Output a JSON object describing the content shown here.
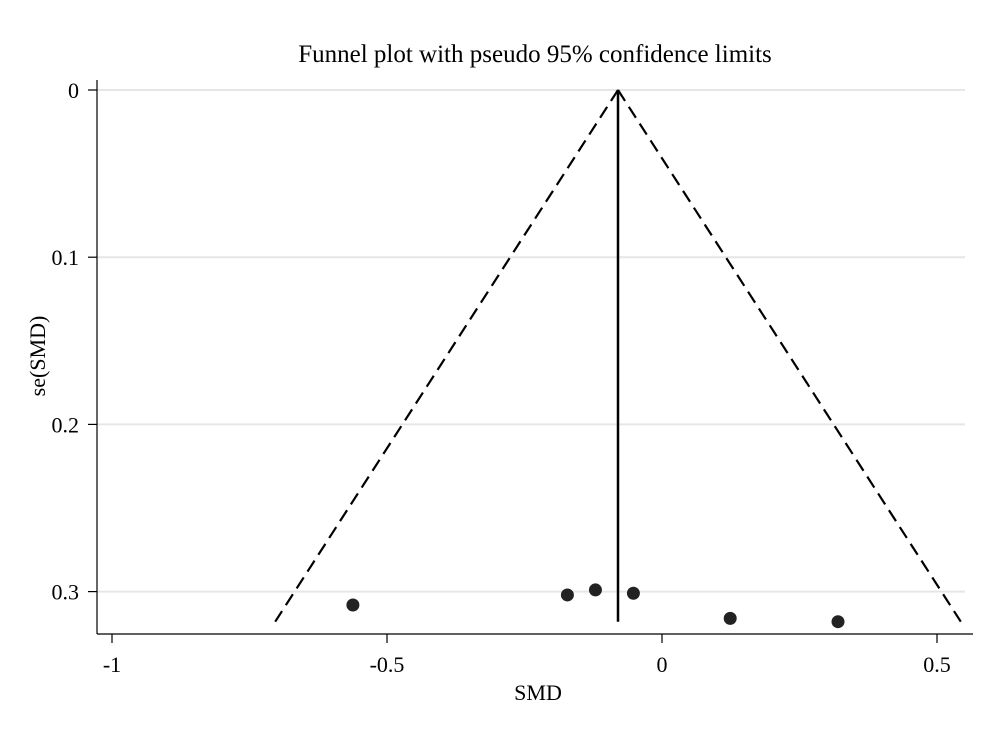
{
  "chart_data": {
    "type": "scatter",
    "title": "Funnel plot with pseudo 95% confidence limits",
    "xlabel": "SMD",
    "ylabel": "se(SMD)",
    "xlim": [
      -1.03,
      0.57
    ],
    "ylim": [
      0,
      0.325
    ],
    "y_inverted": true,
    "x_ticks": [
      -1,
      -0.5,
      0,
      0.5
    ],
    "x_tick_labels": [
      "-1",
      "-0.5",
      "0",
      "0.5"
    ],
    "y_ticks": [
      0,
      0.1,
      0.2,
      0.3
    ],
    "y_tick_labels": [
      "0",
      "0.1",
      "0.2",
      "0.3"
    ],
    "grid": "horizontal",
    "pooled_estimate": -0.08,
    "funnel_se_max": 0.318,
    "points": [
      {
        "x": -0.562,
        "y": 0.308
      },
      {
        "x": -0.172,
        "y": 0.302
      },
      {
        "x": -0.121,
        "y": 0.299
      },
      {
        "x": -0.052,
        "y": 0.301
      },
      {
        "x": 0.124,
        "y": 0.316
      },
      {
        "x": 0.32,
        "y": 0.318
      }
    ]
  }
}
